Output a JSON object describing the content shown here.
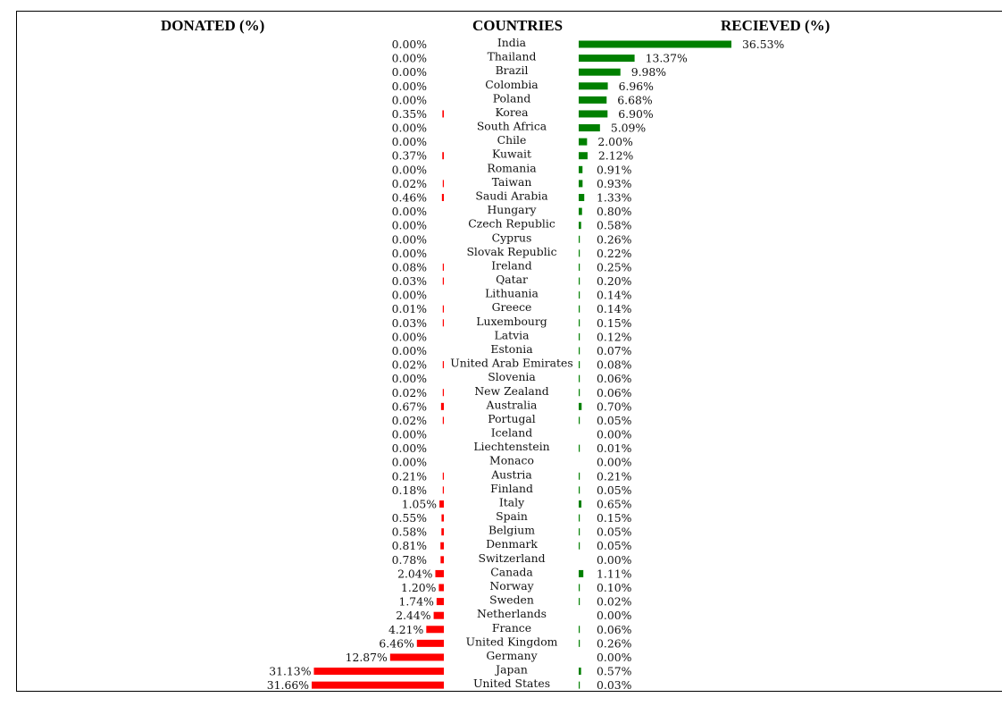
{
  "headers": {
    "donated": "DONATED (%)",
    "countries": "COUNTRIES",
    "received": "RECIEVED (%)"
  },
  "colors": {
    "donated_bar": "#ff0000",
    "received_bar": "#008000"
  },
  "chart_data": {
    "type": "bar",
    "orientation": "horizontal-diverging",
    "categories": [
      "India",
      "Thailand",
      "Brazil",
      "Colombia",
      "Poland",
      "Korea",
      "South Africa",
      "Chile",
      "Kuwait",
      "Romania",
      "Taiwan",
      "Saudi Arabia",
      "Hungary",
      "Czech Republic",
      "Cyprus",
      "Slovak Republic",
      "Ireland",
      "Qatar",
      "Lithuania",
      "Greece",
      "Luxembourg",
      "Latvia",
      "Estonia",
      "United Arab Emirates",
      "Slovenia",
      "New Zealand",
      "Australia",
      "Portugal",
      "Iceland",
      "Liechtenstein",
      "Monaco",
      "Austria",
      "Finland",
      "Italy",
      "Spain",
      "Belgium",
      "Denmark",
      "Switzerland",
      "Canada",
      "Norway",
      "Sweden",
      "Netherlands",
      "France",
      "United Kingdom",
      "Germany",
      "Japan",
      "United States"
    ],
    "series": [
      {
        "name": "DONATED (%)",
        "values": [
          0.0,
          0.0,
          0.0,
          0.0,
          0.0,
          0.35,
          0.0,
          0.0,
          0.37,
          0.0,
          0.02,
          0.46,
          0.0,
          0.0,
          0.0,
          0.0,
          0.08,
          0.03,
          0.0,
          0.01,
          0.03,
          0.0,
          0.0,
          0.02,
          0.0,
          0.02,
          0.67,
          0.02,
          0.0,
          0.0,
          0.0,
          0.21,
          0.18,
          1.05,
          0.55,
          0.58,
          0.81,
          0.78,
          2.04,
          1.2,
          1.74,
          2.44,
          4.21,
          6.46,
          12.87,
          31.13,
          31.66
        ],
        "labels": [
          "0.00%",
          "0.00%",
          "0.00%",
          "0.00%",
          "0.00%",
          "0.35%",
          "0.00%",
          "0.00%",
          "0.37%",
          "0.00%",
          "0.02%",
          "0.46%",
          "0.00%",
          "0.00%",
          "0.00%",
          "0.00%",
          "0.08%",
          "0.03%",
          "0.00%",
          "0.01%",
          "0.03%",
          "0.00%",
          "0.00%",
          "0.02%",
          "0.00%",
          "0.02%",
          "0.67%",
          "0.02%",
          "0.00%",
          "0.00%",
          "0.00%",
          "0.21%",
          "0.18%",
          "1.05%",
          "0.55%",
          "0.58%",
          "0.81%",
          "0.78%",
          "2.04%",
          "1.20%",
          "1.74%",
          "2.44%",
          "4.21%",
          "6.46%",
          "12.87%",
          "31.13%",
          "31.66%"
        ]
      },
      {
        "name": "RECIEVED (%)",
        "values": [
          36.53,
          13.37,
          9.98,
          6.96,
          6.68,
          6.9,
          5.09,
          2.0,
          2.12,
          0.91,
          0.93,
          1.33,
          0.8,
          0.58,
          0.26,
          0.22,
          0.25,
          0.2,
          0.14,
          0.14,
          0.15,
          0.12,
          0.07,
          0.08,
          0.06,
          0.06,
          0.7,
          0.05,
          0.0,
          0.01,
          0.0,
          0.21,
          0.05,
          0.65,
          0.15,
          0.05,
          0.05,
          0.0,
          1.11,
          0.1,
          0.02,
          0.0,
          0.06,
          0.26,
          0.0,
          0.57,
          0.03
        ],
        "labels": [
          "36.53%",
          "13.37%",
          "9.98%",
          "6.96%",
          "6.68%",
          "6.90%",
          "5.09%",
          "2.00%",
          "2.12%",
          "0.91%",
          "0.93%",
          "1.33%",
          "0.80%",
          "0.58%",
          "0.26%",
          "0.22%",
          "0.25%",
          "0.20%",
          "0.14%",
          "0.14%",
          "0.15%",
          "0.12%",
          "0.07%",
          "0.08%",
          "0.06%",
          "0.06%",
          "0.70%",
          "0.05%",
          "0.00%",
          "0.01%",
          "0.00%",
          "0.21%",
          "0.05%",
          "0.65%",
          "0.15%",
          "0.05%",
          "0.05%",
          "0.00%",
          "1.11%",
          "0.10%",
          "0.02%",
          "0.00%",
          "0.06%",
          "0.26%",
          "0.00%",
          "0.57%",
          "0.03%"
        ]
      }
    ]
  }
}
